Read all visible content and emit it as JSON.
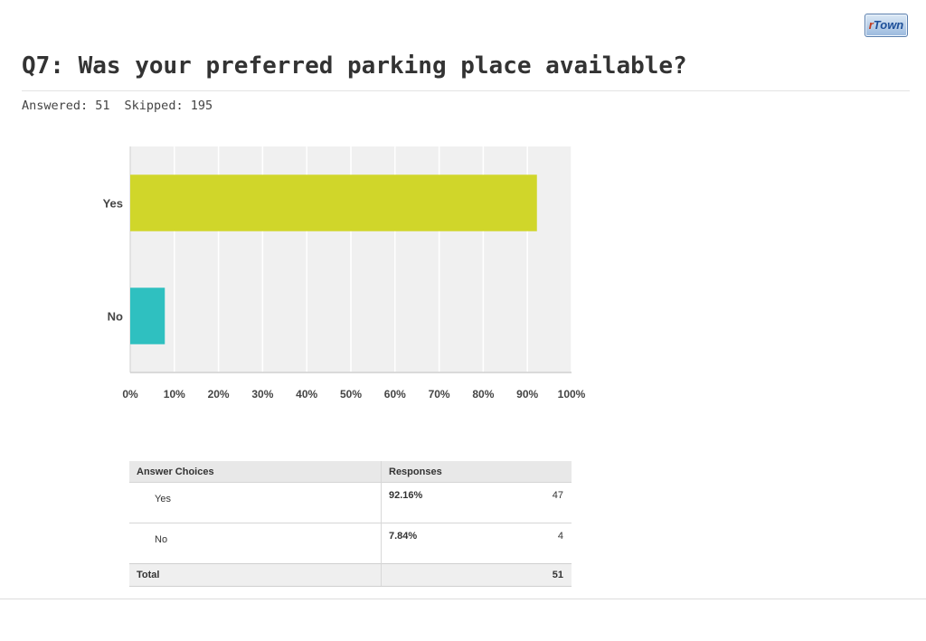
{
  "logo": {
    "r": "r",
    "town": "Town"
  },
  "question": {
    "title": "Q7: Was your preferred parking place available?"
  },
  "stats": {
    "answered": "Answered: 51",
    "skipped": "Skipped: 195"
  },
  "colors": {
    "yes_bar": "#d0d62a",
    "no_bar": "#2fc0c0",
    "plot_bg": "#f0f0f0",
    "grid": "#ffffff"
  },
  "chart_data": {
    "type": "bar",
    "orientation": "horizontal",
    "categories": [
      "Yes",
      "No"
    ],
    "values": [
      92.16,
      7.84
    ],
    "xlim": [
      0,
      100
    ],
    "x_ticks": [
      "0%",
      "10%",
      "20%",
      "30%",
      "40%",
      "50%",
      "60%",
      "70%",
      "80%",
      "90%",
      "100%"
    ],
    "grid": true
  },
  "table": {
    "headers": {
      "choices": "Answer Choices",
      "responses": "Responses"
    },
    "rows": [
      {
        "choice": "Yes",
        "percent": "92.16%",
        "count": "47"
      },
      {
        "choice": "No",
        "percent": "7.84%",
        "count": "4"
      }
    ],
    "total": {
      "label": "Total",
      "value": "51"
    }
  }
}
